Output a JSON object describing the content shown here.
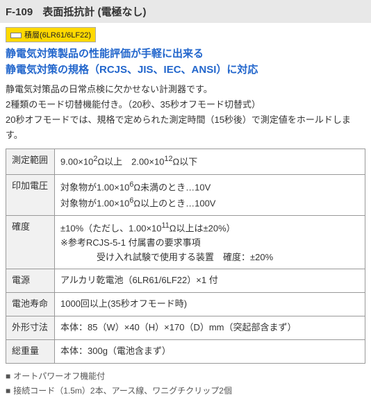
{
  "title": {
    "code": "F-109",
    "name": "表面抵抗計 (電極なし)"
  },
  "badge": {
    "label": "積層(6LR61/6LF22)"
  },
  "headline": {
    "line1": "静電気対策製品の性能評価が手軽に出来る",
    "line2": "静電気対策の規格（RCJS、JIS、IEC、ANSI）に対応"
  },
  "description": {
    "p1": "静電気対策品の日常点検に欠かせない計測器です。",
    "p2": "2種類のモード切替機能付き。（20秒、35秒オフモード切替式）",
    "p3": "20秒オフモードでは、規格で定められた測定時間（15秒後）で測定値をホールドします。"
  },
  "spec": [
    {
      "label": "測定範囲",
      "value": "9.00×10<sup>2</sup>Ω以上　2.00×10<sup>12</sup>Ω以下"
    },
    {
      "label": "印加電圧",
      "value": "対象物が1.00×10<sup>6</sup>Ω未満のとき…10V<br>対象物が1.00×10<sup>6</sup>Ω以上のとき…100V"
    },
    {
      "label": "確度",
      "value": "±10%（ただし、1.00×10<sup>11</sup>Ω以上は±20%）<br>※参考RCJS-5-1 付属書の要求事項<br>　　　　受け入れ試験で使用する装置　確度：±20%"
    },
    {
      "label": "電源",
      "value": "アルカリ乾電池（6LR61/6LF22）×1 付"
    },
    {
      "label": "電池寿命",
      "value": "1000回以上(35秒オフモード時)"
    },
    {
      "label": "外形寸法",
      "value": "本体：85（W）×40（H）×170（D）mm（突起部含まず）"
    },
    {
      "label": "総重量",
      "value": "本体：300g（電池含まず）"
    }
  ],
  "notes": [
    "オートパワーオフ機能付",
    "接続コード（1.5m）2本、アース線、ワニグチクリップ2個"
  ]
}
